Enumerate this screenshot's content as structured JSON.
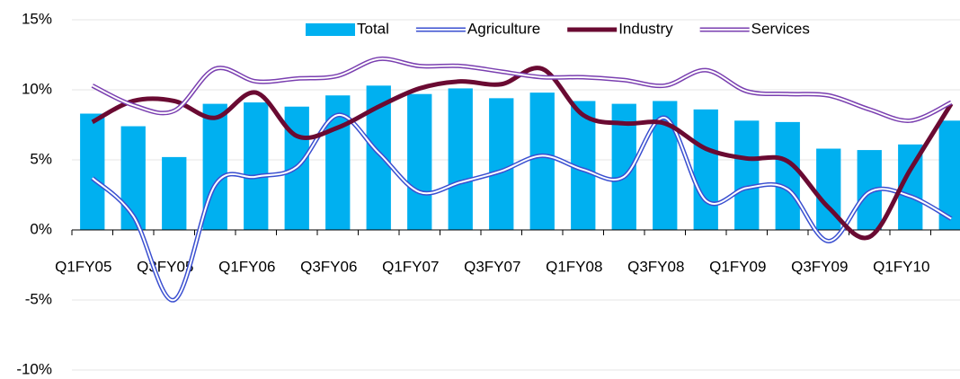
{
  "chart_data": {
    "type": "bar-line",
    "categories": [
      "Q1FY05",
      null,
      "Q3FY05",
      null,
      "Q1FY06",
      null,
      "Q3FY06",
      null,
      "Q1FY07",
      null,
      "Q3FY07",
      null,
      "Q1FY08",
      null,
      "Q3FY08",
      null,
      "Q1FY09",
      null,
      "Q3FY09",
      null,
      "Q1FY10",
      null
    ],
    "series": [
      {
        "name": "Total",
        "kind": "bar",
        "color": "#00b0f0",
        "values": [
          8.3,
          7.4,
          5.2,
          9.0,
          9.1,
          8.8,
          9.6,
          10.3,
          9.7,
          10.1,
          9.4,
          9.8,
          9.2,
          9.0,
          9.2,
          8.6,
          7.8,
          7.7,
          5.8,
          5.7,
          6.1,
          7.8
        ]
      },
      {
        "name": "Agriculture",
        "kind": "double-line",
        "color": "#3a4fd0",
        "values": [
          3.7,
          1.0,
          -5.0,
          3.2,
          3.8,
          4.5,
          8.2,
          5.5,
          2.7,
          3.4,
          4.2,
          5.3,
          4.3,
          3.8,
          8.0,
          2.1,
          3.0,
          2.9,
          -0.8,
          2.7,
          2.4,
          0.8
        ]
      },
      {
        "name": "Industry",
        "kind": "line",
        "color": "#6a0a32",
        "values": [
          7.7,
          9.2,
          9.2,
          8.0,
          9.8,
          6.7,
          7.3,
          8.8,
          10.1,
          10.6,
          10.4,
          11.5,
          8.2,
          7.6,
          7.6,
          5.8,
          5.1,
          4.9,
          1.6,
          -0.5,
          4.3,
          9.0
        ]
      },
      {
        "name": "Services",
        "kind": "double-line",
        "color": "#7a3fb0",
        "values": [
          10.3,
          8.9,
          8.5,
          11.5,
          10.6,
          10.8,
          11.0,
          12.2,
          11.7,
          11.7,
          11.3,
          10.9,
          10.9,
          10.7,
          10.3,
          11.4,
          9.9,
          9.7,
          9.6,
          8.6,
          7.8,
          9.1
        ]
      }
    ],
    "ylim": [
      -10,
      15
    ],
    "yticks": [
      {
        "value": -10,
        "label": "-10%"
      },
      {
        "value": -5,
        "label": "-5%"
      },
      {
        "value": 0,
        "label": "0%"
      },
      {
        "value": 5,
        "label": "5%"
      },
      {
        "value": 10,
        "label": "10%"
      },
      {
        "value": 15,
        "label": "15%"
      }
    ],
    "grid": true,
    "legend": "top"
  }
}
